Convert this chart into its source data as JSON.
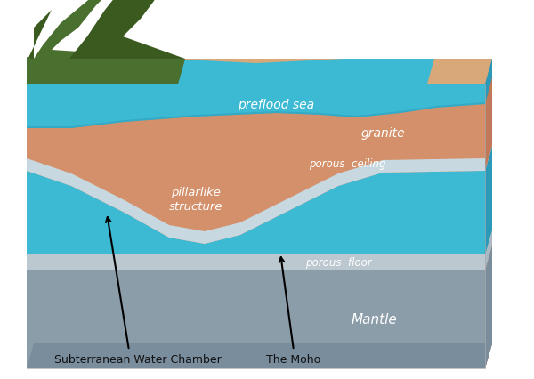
{
  "bg_color": "#ffffff",
  "layers": {
    "mantle_front": "#8c9daa",
    "mantle_side": "#7a8d9d",
    "mantle_top": "#6e8090",
    "porous_floor_front": "#bcc8d0",
    "porous_floor_side": "#aabac4",
    "porous_floor_top": "#c8d4dc",
    "water_blue": "#3cbad4",
    "water_dark": "#2a9ab8",
    "porous_ceil_front": "#c8d8e0",
    "porous_ceil_side": "#b8c8d2",
    "granite_front": "#d4906a",
    "granite_side": "#c07858",
    "granite_top": "#e0a880",
    "granite_light": "#dda882",
    "sea_blue": "#3cbad4",
    "sea_dark": "#2a9ab8",
    "mountain_green1": "#4a7030",
    "mountain_green2": "#3a5a20",
    "mountain_green3": "#5a8040",
    "sand_top": "#d8a878"
  },
  "labels": {
    "preflood_sea": "preflood sea",
    "granite": "granite",
    "pillarlike": "pillarlike\nstructure",
    "porous_ceiling": "porous  ceiling",
    "porous_floor": "porous  floor",
    "mantle": "Mantle",
    "subterranean": "Subterranean Water Chamber",
    "moho": "The Moho"
  },
  "white": "#ffffff",
  "black": "#111111",
  "figsize": [
    6.0,
    4.27
  ],
  "dpi": 100
}
